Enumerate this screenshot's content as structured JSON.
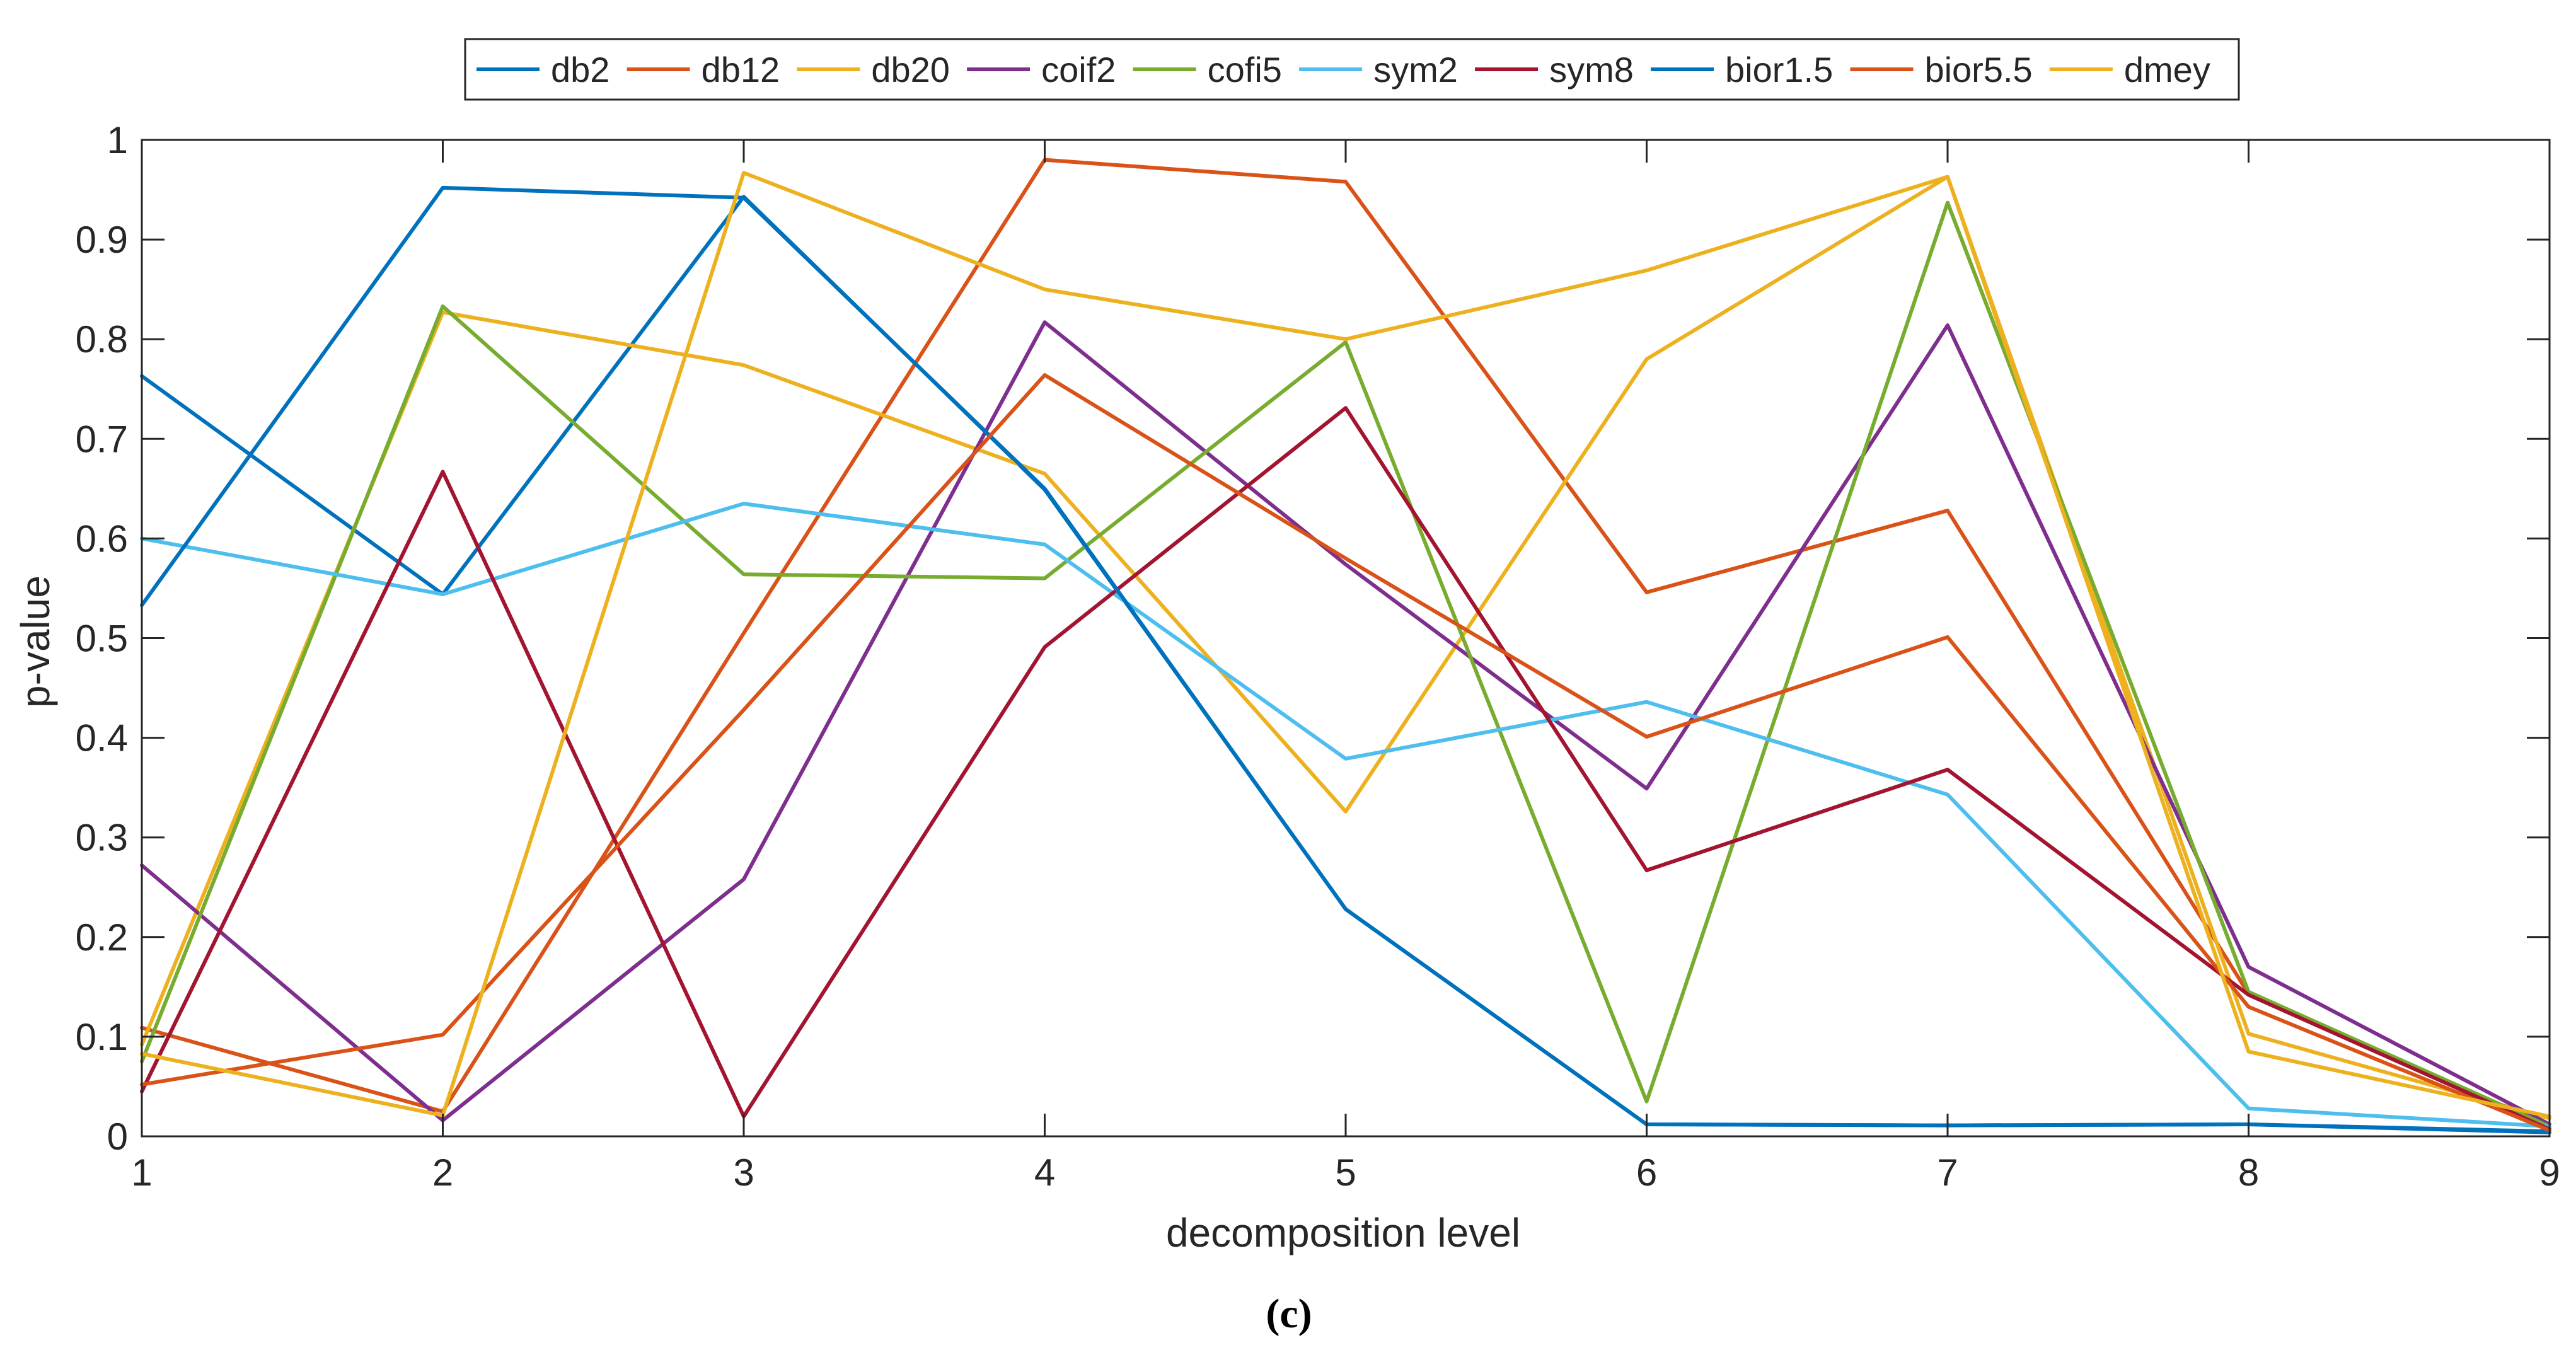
{
  "chart_data": {
    "type": "line",
    "title": "",
    "xlabel": "decomposition level",
    "ylabel": "p-value",
    "panel_label": "(c)",
    "xlim": [
      1,
      9
    ],
    "ylim": [
      0,
      1
    ],
    "xticks": [
      1,
      2,
      3,
      4,
      5,
      6,
      7,
      8,
      9
    ],
    "yticks": [
      0,
      0.1,
      0.2,
      0.3,
      0.4,
      0.5,
      0.6,
      0.7,
      0.8,
      0.9,
      1
    ],
    "ytick_labels": [
      "0",
      "0.1",
      "0.2",
      "0.3",
      "0.4",
      "0.5",
      "0.6",
      "0.7",
      "0.8",
      "0.9",
      "1"
    ],
    "grid": false,
    "legend_position": "top-center",
    "x": [
      1,
      2,
      3,
      4,
      5,
      6,
      7,
      8,
      9
    ],
    "series": [
      {
        "name": "db2",
        "color": "#0072BD",
        "values": [
          0.763,
          0.544,
          0.943,
          0.649,
          0.228,
          0.012,
          0.011,
          0.012,
          0.005
        ]
      },
      {
        "name": "db12",
        "color": "#D95319",
        "values": [
          0.109,
          0.025,
          0.505,
          0.98,
          0.958,
          0.546,
          0.628,
          0.143,
          0.008
        ]
      },
      {
        "name": "db20",
        "color": "#EDB120",
        "values": [
          0.092,
          0.827,
          0.774,
          0.665,
          0.326,
          0.78,
          0.963,
          0.103,
          0.018
        ]
      },
      {
        "name": "coif2",
        "color": "#7E2F8E",
        "values": [
          0.272,
          0.016,
          0.258,
          0.817,
          0.574,
          0.349,
          0.814,
          0.17,
          0.012
        ]
      },
      {
        "name": "cofi5",
        "color": "#77AC30",
        "values": [
          0.075,
          0.833,
          0.564,
          0.56,
          0.797,
          0.035,
          0.937,
          0.145,
          0.01
        ]
      },
      {
        "name": "sym2",
        "color": "#4DBEEE",
        "values": [
          0.6,
          0.544,
          0.635,
          0.594,
          0.379,
          0.436,
          0.343,
          0.028,
          0.01
        ]
      },
      {
        "name": "sym8",
        "color": "#A2142F",
        "values": [
          0.045,
          0.667,
          0.02,
          0.491,
          0.731,
          0.267,
          0.368,
          0.142,
          0.007
        ]
      },
      {
        "name": "bior1.5",
        "color": "#0072BD",
        "values": [
          0.533,
          0.952,
          0.942,
          0.65,
          0.228,
          0.012,
          0.011,
          0.012,
          0.004
        ]
      },
      {
        "name": "bior5.5",
        "color": "#D95319",
        "values": [
          0.052,
          0.102,
          0.428,
          0.764,
          0.58,
          0.401,
          0.501,
          0.13,
          0.006
        ]
      },
      {
        "name": "dmey",
        "color": "#EDB120",
        "values": [
          0.083,
          0.021,
          0.967,
          0.85,
          0.8,
          0.869,
          0.963,
          0.085,
          0.02
        ]
      }
    ]
  }
}
